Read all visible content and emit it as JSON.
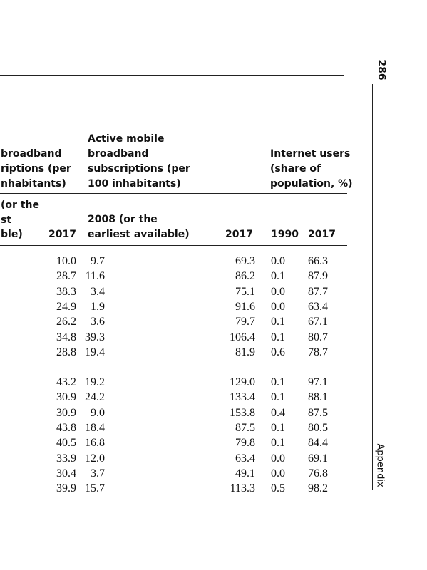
{
  "page_number": "286",
  "running_head": "Appendix",
  "header": {
    "groups": [
      {
        "lines": [
          "broadband",
          "riptions (per",
          "nhabitants)"
        ]
      },
      {
        "lines": [
          "Active mobile",
          "broadband",
          "subscriptions (per",
          "100 inhabitants)"
        ]
      },
      {
        "lines": [
          "Internet users",
          "(share of",
          "population, %)"
        ]
      }
    ],
    "columns": [
      {
        "lines": [
          "(or the",
          "st",
          "ble)"
        ]
      },
      {
        "lines": [
          "2017"
        ]
      },
      {
        "lines": [
          "2008 (or the",
          "earliest available)"
        ]
      },
      {
        "lines": [
          "2017"
        ]
      },
      {
        "lines": [
          "1990"
        ]
      },
      {
        "lines": [
          "2017"
        ]
      }
    ]
  },
  "table": {
    "groups": [
      {
        "rows": [
          [
            "10.0",
            "9.7",
            "69.3",
            "0.0",
            "66.3"
          ],
          [
            "28.7",
            "11.6",
            "86.2",
            "0.1",
            "87.9"
          ],
          [
            "38.3",
            "3.4",
            "75.1",
            "0.0",
            "87.7"
          ],
          [
            "24.9",
            "1.9",
            "91.6",
            "0.0",
            "63.4"
          ],
          [
            "26.2",
            "3.6",
            "79.7",
            "0.1",
            "67.1"
          ],
          [
            "34.8",
            "39.3",
            "106.4",
            "0.1",
            "80.7"
          ],
          [
            "28.8",
            "19.4",
            "81.9",
            "0.6",
            "78.7"
          ]
        ]
      },
      {
        "rows": [
          [
            "43.2",
            "19.2",
            "129.0",
            "0.1",
            "97.1"
          ],
          [
            "30.9",
            "24.2",
            "133.4",
            "0.1",
            "88.1"
          ],
          [
            "30.9",
            "9.0",
            "153.8",
            "0.4",
            "87.5"
          ],
          [
            "43.8",
            "18.4",
            "87.5",
            "0.1",
            "80.5"
          ],
          [
            "40.5",
            "16.8",
            "79.8",
            "0.1",
            "84.4"
          ],
          [
            "33.9",
            "12.0",
            "63.4",
            "0.0",
            "69.1"
          ],
          [
            "30.4",
            "3.7",
            "49.1",
            "0.0",
            "76.8"
          ],
          [
            "39.9",
            "15.7",
            "113.3",
            "0.5",
            "98.2"
          ]
        ]
      }
    ]
  }
}
